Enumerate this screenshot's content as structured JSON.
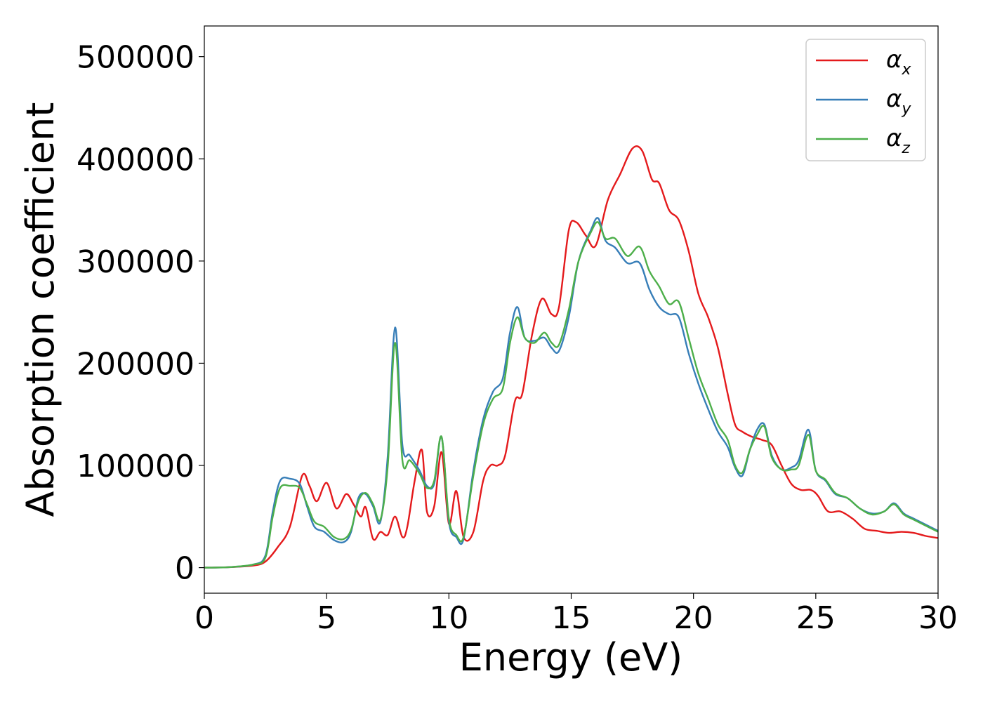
{
  "chart_data": {
    "type": "line",
    "title": "",
    "xlabel": "Energy (eV)",
    "ylabel": "Absorption coefficient",
    "xlim": [
      0,
      30
    ],
    "ylim": [
      -25000,
      530000
    ],
    "xticks": [
      0,
      5,
      10,
      15,
      20,
      25,
      30
    ],
    "yticks": [
      0,
      100000,
      200000,
      300000,
      400000,
      500000
    ],
    "grid": false,
    "legend_position": "top-right",
    "series": [
      {
        "name": "α_x",
        "label_main": "α",
        "label_sub": "x",
        "color": "#e41a1c",
        "x": [
          0,
          1,
          2,
          2.5,
          3,
          3.5,
          4,
          4.3,
          4.6,
          5,
          5.4,
          5.8,
          6.1,
          6.4,
          6.6,
          6.9,
          7.2,
          7.5,
          7.8,
          8.1,
          8.3,
          8.6,
          8.9,
          9.1,
          9.4,
          9.7,
          10,
          10.3,
          10.6,
          11,
          11.4,
          11.7,
          12,
          12.3,
          12.7,
          13,
          13.4,
          13.8,
          14.2,
          14.5,
          14.9,
          15.2,
          15.6,
          16,
          16.5,
          17,
          17.5,
          17.9,
          18.3,
          18.6,
          19,
          19.4,
          19.8,
          20.2,
          20.6,
          21,
          21.4,
          21.7,
          22,
          22.4,
          22.8,
          23.2,
          23.6,
          24,
          24.4,
          24.8,
          25.1,
          25.5,
          26,
          26.5,
          27,
          27.5,
          28,
          28.5,
          29,
          29.5,
          30
        ],
        "y": [
          0,
          500,
          2000,
          6000,
          20000,
          40000,
          90000,
          80000,
          65000,
          83000,
          58000,
          72000,
          62000,
          50000,
          59000,
          28000,
          35000,
          32000,
          50000,
          30000,
          40000,
          85000,
          115000,
          55000,
          60000,
          113000,
          43000,
          75000,
          30000,
          35000,
          85000,
          100000,
          100000,
          110000,
          163000,
          170000,
          228000,
          263000,
          248000,
          255000,
          330000,
          338000,
          325000,
          315000,
          360000,
          385000,
          410000,
          408000,
          380000,
          376000,
          350000,
          340000,
          310000,
          268000,
          245000,
          215000,
          170000,
          140000,
          133000,
          128000,
          125000,
          120000,
          100000,
          82000,
          76000,
          76000,
          70000,
          55000,
          55000,
          48000,
          38000,
          36000,
          34000,
          35000,
          34000,
          31000,
          29000
        ]
      },
      {
        "name": "α_y",
        "label_main": "α",
        "label_sub": "y",
        "color": "#377eb8",
        "x": [
          0,
          1,
          2,
          2.5,
          2.8,
          3.1,
          3.5,
          3.9,
          4.2,
          4.5,
          4.9,
          5.3,
          5.7,
          6,
          6.3,
          6.6,
          6.9,
          7.2,
          7.5,
          7.8,
          8.1,
          8.4,
          8.8,
          9.1,
          9.4,
          9.7,
          10,
          10.3,
          10.6,
          11,
          11.4,
          11.8,
          12.2,
          12.5,
          12.8,
          13.1,
          13.5,
          13.9,
          14.2,
          14.5,
          14.9,
          15.3,
          15.8,
          16.1,
          16.4,
          16.8,
          17.3,
          17.8,
          18.2,
          18.6,
          19,
          19.4,
          19.8,
          20.2,
          20.6,
          21,
          21.4,
          21.7,
          22,
          22.3,
          22.6,
          22.9,
          23.2,
          23.6,
          24,
          24.3,
          24.7,
          25,
          25.4,
          25.8,
          26.3,
          26.8,
          27.3,
          27.8,
          28.2,
          28.6,
          29,
          29.5,
          30
        ],
        "y": [
          0,
          500,
          3000,
          12000,
          55000,
          85000,
          87000,
          82000,
          60000,
          40000,
          35000,
          27000,
          25000,
          35000,
          68000,
          72000,
          60000,
          45000,
          110000,
          235000,
          120000,
          110000,
          95000,
          80000,
          82000,
          128000,
          45000,
          30000,
          28000,
          95000,
          145000,
          172000,
          185000,
          230000,
          255000,
          225000,
          222000,
          225000,
          215000,
          212000,
          245000,
          300000,
          330000,
          342000,
          320000,
          313000,
          298000,
          298000,
          272000,
          255000,
          248000,
          245000,
          210000,
          180000,
          155000,
          133000,
          118000,
          98000,
          90000,
          115000,
          135000,
          140000,
          110000,
          96000,
          98000,
          105000,
          135000,
          95000,
          85000,
          72000,
          68000,
          58000,
          53000,
          55000,
          63000,
          53000,
          48000,
          42000,
          36000
        ]
      },
      {
        "name": "α_z",
        "label_main": "α",
        "label_sub": "z",
        "color": "#4daf4a",
        "x": [
          0,
          1,
          2,
          2.5,
          2.8,
          3.1,
          3.5,
          3.9,
          4.2,
          4.5,
          4.9,
          5.3,
          5.7,
          6,
          6.3,
          6.6,
          6.9,
          7.2,
          7.5,
          7.8,
          8.1,
          8.4,
          8.8,
          9.1,
          9.4,
          9.7,
          10,
          10.3,
          10.6,
          11,
          11.4,
          11.8,
          12.2,
          12.5,
          12.8,
          13.1,
          13.5,
          13.9,
          14.2,
          14.5,
          14.9,
          15.3,
          15.8,
          16.1,
          16.4,
          16.8,
          17.3,
          17.8,
          18.2,
          18.6,
          19,
          19.4,
          19.8,
          20.2,
          20.6,
          21,
          21.4,
          21.7,
          22,
          22.3,
          22.6,
          22.9,
          23.2,
          23.6,
          24,
          24.3,
          24.7,
          25,
          25.4,
          25.8,
          26.3,
          26.8,
          27.3,
          27.8,
          28.2,
          28.6,
          29,
          29.5,
          30
        ],
        "y": [
          0,
          500,
          3000,
          10000,
          50000,
          78000,
          80000,
          78000,
          62000,
          45000,
          40000,
          30000,
          28000,
          37000,
          65000,
          73000,
          62000,
          47000,
          100000,
          220000,
          105000,
          105000,
          92000,
          78000,
          85000,
          128000,
          48000,
          32000,
          30000,
          90000,
          140000,
          165000,
          175000,
          220000,
          245000,
          225000,
          220000,
          230000,
          220000,
          218000,
          252000,
          300000,
          328000,
          338000,
          322000,
          322000,
          305000,
          314000,
          290000,
          275000,
          258000,
          260000,
          225000,
          190000,
          165000,
          140000,
          125000,
          100000,
          93000,
          115000,
          130000,
          138000,
          108000,
          96000,
          96000,
          100000,
          130000,
          95000,
          86000,
          73000,
          68000,
          58000,
          52000,
          55000,
          62000,
          52000,
          47000,
          41000,
          35000
        ]
      }
    ]
  }
}
